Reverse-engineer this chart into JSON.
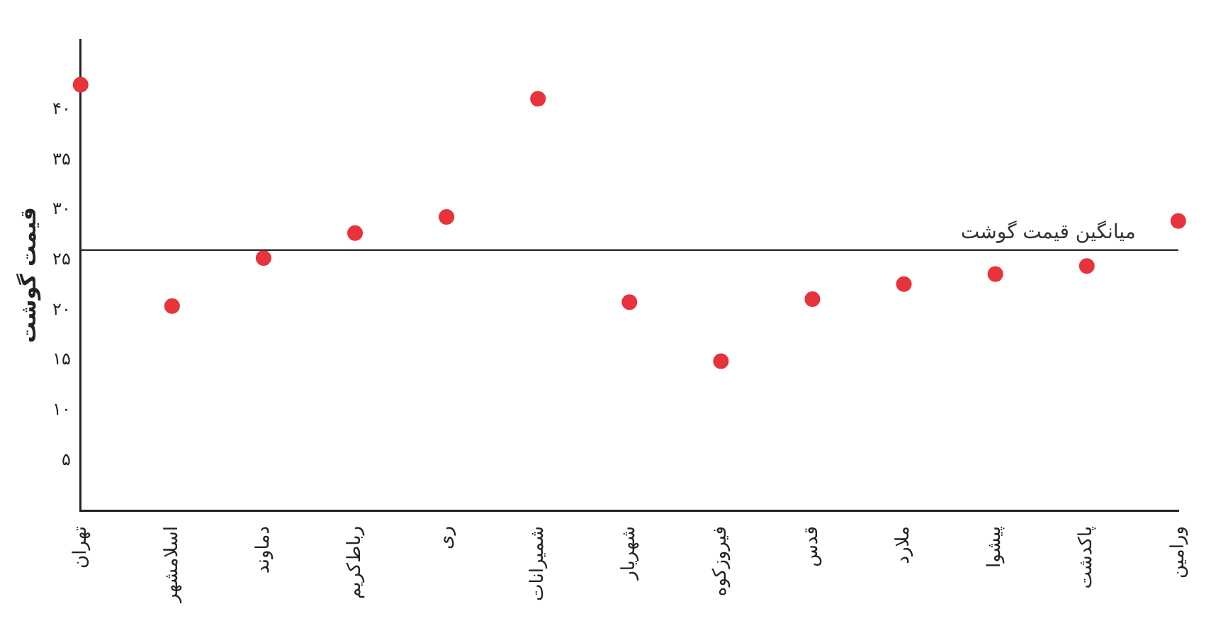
{
  "chart_data": {
    "type": "scatter",
    "ylabel": "قیمت گوشت",
    "categories": [
      "تهران",
      "اسلامشهر",
      "دماوند",
      "رباط‌کریم",
      "ری",
      "شمیرانات",
      "شهریار",
      "فیروزکوه",
      "قدس",
      "ملارد",
      "پیشوا",
      "پاکدشت",
      "ورامین"
    ],
    "series": [
      {
        "color": "#e8323c",
        "values": [
          42.5,
          20.4,
          25.2,
          27.7,
          29.3,
          41.1,
          20.8,
          14.9,
          21.1,
          22.6,
          23.6,
          24.4,
          28.9
        ]
      }
    ],
    "ylim": [
      0,
      47
    ],
    "yticks": [
      {
        "value": 5,
        "label": "۵"
      },
      {
        "value": 10,
        "label": "۱۰"
      },
      {
        "value": 15,
        "label": "۱۵"
      },
      {
        "value": 20,
        "label": "۲۰"
      },
      {
        "value": 25,
        "label": "۲۵"
      },
      {
        "value": 30,
        "label": "۳۰"
      },
      {
        "value": 35,
        "label": "۳۵"
      },
      {
        "value": 40,
        "label": "۴۰"
      }
    ],
    "ref_lines": [
      {
        "axis": "y",
        "value": 26,
        "label": "میانگین قیمت گوشت",
        "color": "#333333"
      }
    ],
    "grid": false,
    "legend": false,
    "marker": "circle"
  }
}
